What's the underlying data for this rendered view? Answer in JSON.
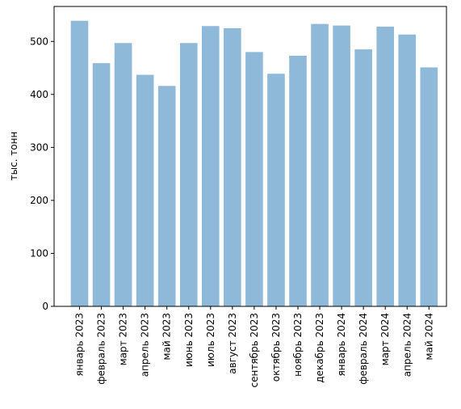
{
  "chart_data": {
    "type": "bar",
    "title": "",
    "xlabel": "",
    "ylabel": "тыс. тонн",
    "ylim": [
      0,
      566
    ],
    "yticks": [
      0,
      100,
      200,
      300,
      400,
      500
    ],
    "grid": false,
    "bar_color": "#8fb9d9",
    "categories": [
      "январь 2023",
      "февраль 2023",
      "март 2023",
      "апрель 2023",
      "май 2023",
      "июнь 2023",
      "июль 2023",
      "август 2023",
      "сентябрь 2023",
      "октябрь 2023",
      "ноябрь 2023",
      "декабрь 2023",
      "январь 2024",
      "февраль 2024",
      "март 2024",
      "апрель 2024",
      "май 2024"
    ],
    "values": [
      539,
      459,
      497,
      437,
      416,
      497,
      529,
      525,
      480,
      439,
      473,
      533,
      530,
      485,
      528,
      513,
      451
    ]
  }
}
